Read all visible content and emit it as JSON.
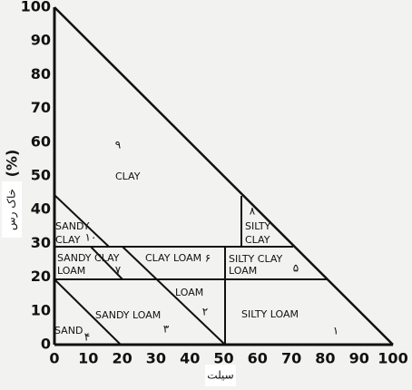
{
  "axes": {
    "xticks": [
      0,
      10,
      20,
      30,
      40,
      50,
      60,
      70,
      80,
      90,
      100
    ],
    "yticks": [
      0,
      10,
      20,
      30,
      40,
      50,
      60,
      70,
      80,
      90,
      100
    ],
    "y_unit": "(%)",
    "y_title": "خاک رس",
    "x_title": "سیلت"
  },
  "regions": [
    {
      "lines": [
        "CLAY"
      ],
      "number": "۹"
    },
    {
      "lines": [
        "SANDY",
        "CLAY"
      ],
      "number": "۱۰"
    },
    {
      "lines": [
        "SILTY",
        "CLAY"
      ],
      "number": "۸"
    },
    {
      "lines": [
        "SANDY CLAY",
        "LOAM"
      ],
      "number": "۷"
    },
    {
      "lines": [
        "CLAY LOAM"
      ],
      "number": "۶"
    },
    {
      "lines": [
        "SILTY CLAY",
        "LOAM"
      ],
      "number": "۵"
    },
    {
      "lines": [
        "LOAM"
      ],
      "number": "۲"
    },
    {
      "lines": [
        "SANDY LOAM"
      ],
      "number": "۳"
    },
    {
      "lines": [
        "SILTY LOAM"
      ],
      "number": "۱"
    },
    {
      "lines": [
        "SAND"
      ],
      "number": "۴"
    }
  ]
}
